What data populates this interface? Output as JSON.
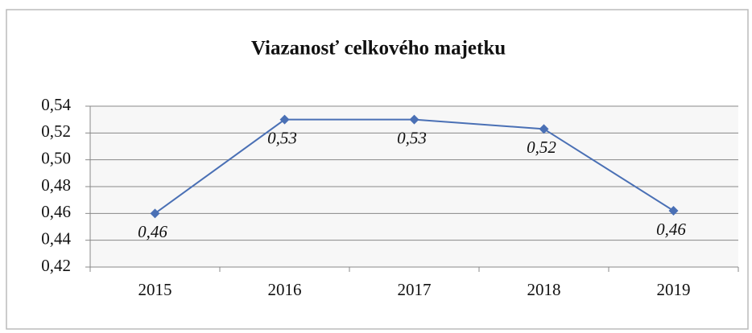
{
  "chart_data": {
    "type": "line",
    "title": "Viazanosť celkového majetku",
    "categories": [
      "2015",
      "2016",
      "2017",
      "2018",
      "2019"
    ],
    "values": [
      0.46,
      0.53,
      0.53,
      0.523,
      0.462
    ],
    "value_labels": [
      "0,46",
      "0,53",
      "0,53",
      "0,52",
      "0,46"
    ],
    "color": "#4a70b5",
    "ylim": [
      0.42,
      0.54
    ],
    "yticks": [
      {
        "value": 0.42,
        "label": "0,42"
      },
      {
        "value": 0.44,
        "label": "0,44"
      },
      {
        "value": 0.46,
        "label": "0,46"
      },
      {
        "value": 0.48,
        "label": "0,48"
      },
      {
        "value": 0.5,
        "label": "0,50"
      },
      {
        "value": 0.52,
        "label": "0,52"
      },
      {
        "value": 0.54,
        "label": "0,54"
      }
    ],
    "grid": true
  }
}
